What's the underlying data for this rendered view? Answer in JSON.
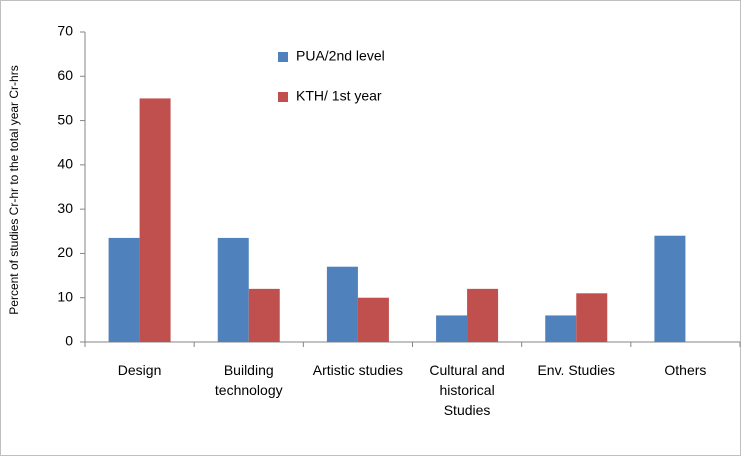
{
  "chart_data": {
    "type": "bar",
    "y_label": "Percent of studies Cr-hr to the total year Cr-hrs",
    "categories": [
      "Design",
      "Building technology",
      "Artistic studies",
      "Cultural and historical Studies",
      "Env. Studies",
      "Others"
    ],
    "series": [
      {
        "name": "PUA/2nd level",
        "color": "#4f81bd",
        "values": [
          23.5,
          23.5,
          17,
          6,
          6,
          24
        ]
      },
      {
        "name": "KTH/ 1st year",
        "color": "#c0504d",
        "values": [
          55,
          12,
          10,
          12,
          11,
          null
        ]
      }
    ],
    "ylim": [
      0,
      70
    ],
    "yticks": [
      0,
      10,
      20,
      30,
      40,
      50,
      60,
      70
    ]
  }
}
